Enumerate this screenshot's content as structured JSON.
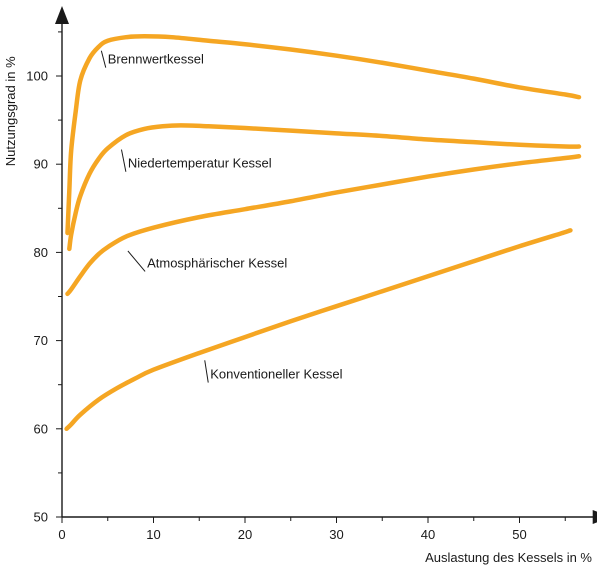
{
  "chart_data": {
    "type": "line",
    "title": "",
    "xlabel": "Auslastung des Kessels in %",
    "ylabel": "Nutzungsgrad in %",
    "xlim": [
      0,
      58
    ],
    "ylim": [
      50,
      106
    ],
    "xticks": [
      0,
      10,
      20,
      30,
      40,
      50
    ],
    "yticks": [
      50,
      60,
      70,
      80,
      90,
      100
    ],
    "grid": false,
    "line_color": "#f5a623",
    "axis_color": "#1a1a1a",
    "series": [
      {
        "name": "Brennwertkessel",
        "points": [
          [
            0.6,
            82.2
          ],
          [
            0.8,
            87.0
          ],
          [
            1.0,
            91.5
          ],
          [
            1.5,
            96.0
          ],
          [
            2,
            99.5
          ],
          [
            3,
            102.0
          ],
          [
            4,
            103.3
          ],
          [
            5,
            104.0
          ],
          [
            7,
            104.4
          ],
          [
            9,
            104.5
          ],
          [
            12,
            104.4
          ],
          [
            16,
            104.0
          ],
          [
            20,
            103.6
          ],
          [
            25,
            103.0
          ],
          [
            30,
            102.3
          ],
          [
            35,
            101.5
          ],
          [
            40,
            100.6
          ],
          [
            45,
            99.7
          ],
          [
            50,
            98.7
          ],
          [
            55,
            97.9
          ],
          [
            56.5,
            97.6
          ]
        ]
      },
      {
        "name": "Niedertemperatur Kessel",
        "points": [
          [
            0.8,
            80.4
          ],
          [
            1.0,
            82.0
          ],
          [
            1.5,
            84.5
          ],
          [
            2,
            86.4
          ],
          [
            3,
            88.9
          ],
          [
            4,
            90.6
          ],
          [
            5,
            91.8
          ],
          [
            7,
            93.3
          ],
          [
            9,
            94.0
          ],
          [
            11,
            94.3
          ],
          [
            13,
            94.4
          ],
          [
            16,
            94.3
          ],
          [
            20,
            94.1
          ],
          [
            25,
            93.8
          ],
          [
            30,
            93.5
          ],
          [
            35,
            93.2
          ],
          [
            40,
            92.8
          ],
          [
            45,
            92.5
          ],
          [
            50,
            92.2
          ],
          [
            55,
            92.0
          ],
          [
            56.5,
            92.0
          ]
        ]
      },
      {
        "name": "Atmosphärischer Kessel",
        "points": [
          [
            0.6,
            75.3
          ],
          [
            1,
            75.8
          ],
          [
            2,
            77.3
          ],
          [
            3,
            78.7
          ],
          [
            4,
            79.8
          ],
          [
            5,
            80.6
          ],
          [
            7,
            81.8
          ],
          [
            10,
            82.8
          ],
          [
            15,
            84.0
          ],
          [
            20,
            84.9
          ],
          [
            25,
            85.8
          ],
          [
            30,
            86.8
          ],
          [
            35,
            87.7
          ],
          [
            40,
            88.6
          ],
          [
            45,
            89.4
          ],
          [
            50,
            90.1
          ],
          [
            55,
            90.7
          ],
          [
            56.5,
            90.9
          ]
        ]
      },
      {
        "name": "Konventioneller Kessel",
        "points": [
          [
            0.5,
            60.0
          ],
          [
            1,
            60.5
          ],
          [
            2,
            61.6
          ],
          [
            4,
            63.3
          ],
          [
            6,
            64.6
          ],
          [
            8,
            65.7
          ],
          [
            10,
            66.7
          ],
          [
            15,
            68.6
          ],
          [
            20,
            70.4
          ],
          [
            25,
            72.2
          ],
          [
            30,
            73.9
          ],
          [
            35,
            75.6
          ],
          [
            40,
            77.3
          ],
          [
            45,
            79.0
          ],
          [
            50,
            80.7
          ],
          [
            55,
            82.3
          ],
          [
            55.5,
            82.5
          ]
        ]
      }
    ],
    "annotations": [
      {
        "text": "Brennwertkessel",
        "x": 5.0,
        "y": 101.4,
        "series": 0,
        "anchor_x": 4.3,
        "anchor_y": 103.2
      },
      {
        "text": "Niedertemperatur Kessel",
        "x": 7.2,
        "y": 89.6,
        "series": 1,
        "anchor_x": 6.5,
        "anchor_y": 92.0
      },
      {
        "text": "Atmosphärischer Kessel",
        "x": 9.3,
        "y": 78.3,
        "series": 2,
        "anchor_x": 7.2,
        "anchor_y": 80.5
      },
      {
        "text": "Konventioneller Kessel",
        "x": 16.2,
        "y": 65.7,
        "series": 3,
        "anchor_x": 15.6,
        "anchor_y": 68.1
      }
    ]
  }
}
